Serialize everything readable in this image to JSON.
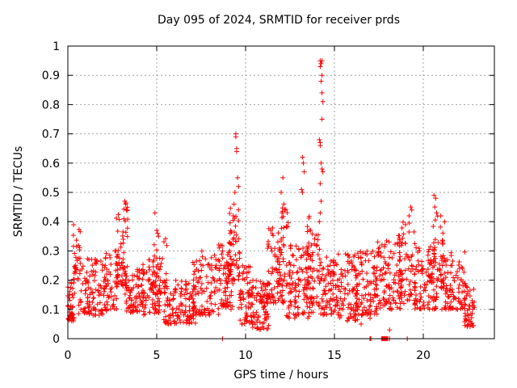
{
  "chart_data": {
    "type": "scatter",
    "title": "Day 095 of 2024, SRMTID for receiver prds",
    "xlabel": "GPS time / hours",
    "ylabel": "SRMTID / TECUs",
    "xlim": [
      0,
      24
    ],
    "ylim": [
      0,
      1
    ],
    "xticks": [
      0,
      5,
      10,
      15,
      20
    ],
    "yticks": [
      0,
      0.1,
      0.2,
      0.3,
      0.4,
      0.5,
      0.6,
      0.7,
      0.8,
      0.9,
      1
    ],
    "x_tick_labels": [
      "0",
      "5",
      "10",
      "15",
      "20"
    ],
    "y_tick_labels": [
      "0",
      "0.1",
      "0.2",
      "0.3",
      "0.4",
      "0.5",
      "0.6",
      "0.7",
      "0.8",
      "0.9",
      "1"
    ],
    "grid": true,
    "marker": "plus",
    "series": [
      {
        "name": "SRMTID",
        "color": "#ff0000",
        "clusters": [
          {
            "x0": 0.0,
            "x1": 0.4,
            "y_lo": 0.06,
            "y_hi": 0.2,
            "n": 40
          },
          {
            "x0": 0.3,
            "x1": 0.7,
            "y_lo": 0.2,
            "y_hi": 0.39,
            "n": 30
          },
          {
            "x0": 0.6,
            "x1": 2.2,
            "y_lo": 0.08,
            "y_hi": 0.28,
            "n": 110
          },
          {
            "x0": 2.0,
            "x1": 2.8,
            "y_lo": 0.1,
            "y_hi": 0.3,
            "n": 50
          },
          {
            "x0": 2.7,
            "x1": 3.4,
            "y_lo": 0.18,
            "y_hi": 0.47,
            "n": 60
          },
          {
            "x0": 3.2,
            "x1": 4.3,
            "y_lo": 0.09,
            "y_hi": 0.24,
            "n": 80
          },
          {
            "x0": 4.2,
            "x1": 5.2,
            "y_lo": 0.08,
            "y_hi": 0.27,
            "n": 70
          },
          {
            "x0": 4.8,
            "x1": 5.6,
            "y_lo": 0.15,
            "y_hi": 0.36,
            "n": 35
          },
          {
            "x0": 5.4,
            "x1": 7.2,
            "y_lo": 0.05,
            "y_hi": 0.2,
            "n": 120
          },
          {
            "x0": 7.0,
            "x1": 8.6,
            "y_lo": 0.08,
            "y_hi": 0.3,
            "n": 100
          },
          {
            "x0": 8.4,
            "x1": 9.3,
            "y_lo": 0.1,
            "y_hi": 0.33,
            "n": 70
          },
          {
            "x0": 9.0,
            "x1": 9.7,
            "y_lo": 0.2,
            "y_hi": 0.45,
            "n": 50
          },
          {
            "x0": 9.6,
            "x1": 10.4,
            "y_lo": 0.05,
            "y_hi": 0.25,
            "n": 60
          },
          {
            "x0": 10.3,
            "x1": 11.3,
            "y_lo": 0.03,
            "y_hi": 0.2,
            "n": 80
          },
          {
            "x0": 11.2,
            "x1": 12.3,
            "y_lo": 0.12,
            "y_hi": 0.38,
            "n": 90
          },
          {
            "x0": 11.9,
            "x1": 12.4,
            "y_lo": 0.3,
            "y_hi": 0.48,
            "n": 20
          },
          {
            "x0": 12.3,
            "x1": 13.8,
            "y_lo": 0.07,
            "y_hi": 0.32,
            "n": 110
          },
          {
            "x0": 13.4,
            "x1": 14.2,
            "y_lo": 0.12,
            "y_hi": 0.42,
            "n": 60
          },
          {
            "x0": 14.1,
            "x1": 15.3,
            "y_lo": 0.08,
            "y_hi": 0.28,
            "n": 90
          },
          {
            "x0": 15.2,
            "x1": 16.3,
            "y_lo": 0.06,
            "y_hi": 0.3,
            "n": 80
          },
          {
            "x0": 16.2,
            "x1": 17.4,
            "y_lo": 0.08,
            "y_hi": 0.3,
            "n": 90
          },
          {
            "x0": 17.3,
            "x1": 18.8,
            "y_lo": 0.1,
            "y_hi": 0.34,
            "n": 110
          },
          {
            "x0": 18.6,
            "x1": 19.6,
            "y_lo": 0.12,
            "y_hi": 0.4,
            "n": 70
          },
          {
            "x0": 19.5,
            "x1": 20.8,
            "y_lo": 0.1,
            "y_hi": 0.32,
            "n": 100
          },
          {
            "x0": 20.4,
            "x1": 21.2,
            "y_lo": 0.18,
            "y_hi": 0.42,
            "n": 45
          },
          {
            "x0": 21.0,
            "x1": 22.4,
            "y_lo": 0.1,
            "y_hi": 0.3,
            "n": 100
          },
          {
            "x0": 22.3,
            "x1": 22.9,
            "y_lo": 0.04,
            "y_hi": 0.18,
            "n": 45
          }
        ],
        "points": [
          [
            9.45,
            0.7
          ],
          [
            9.45,
            0.69
          ],
          [
            9.5,
            0.65
          ],
          [
            9.5,
            0.64
          ],
          [
            9.55,
            0.55
          ],
          [
            9.6,
            0.52
          ],
          [
            9.4,
            0.5
          ],
          [
            9.35,
            0.46
          ],
          [
            9.3,
            0.42
          ],
          [
            12.1,
            0.55
          ],
          [
            12.0,
            0.5
          ],
          [
            12.15,
            0.46
          ],
          [
            12.05,
            0.43
          ],
          [
            13.2,
            0.62
          ],
          [
            13.25,
            0.6
          ],
          [
            13.3,
            0.57
          ],
          [
            13.15,
            0.51
          ],
          [
            13.2,
            0.5
          ],
          [
            14.2,
            0.95
          ],
          [
            14.25,
            0.94
          ],
          [
            14.3,
            0.95
          ],
          [
            14.2,
            0.93
          ],
          [
            14.3,
            0.9
          ],
          [
            14.25,
            0.88
          ],
          [
            14.3,
            0.84
          ],
          [
            14.35,
            0.81
          ],
          [
            14.3,
            0.75
          ],
          [
            14.15,
            0.68
          ],
          [
            14.2,
            0.67
          ],
          [
            14.2,
            0.66
          ],
          [
            14.25,
            0.6
          ],
          [
            14.3,
            0.58
          ],
          [
            14.35,
            0.57
          ],
          [
            14.2,
            0.53
          ],
          [
            14.25,
            0.47
          ],
          [
            14.2,
            0.43
          ],
          [
            14.15,
            0.4
          ],
          [
            3.2,
            0.47
          ],
          [
            3.25,
            0.46
          ],
          [
            3.3,
            0.44
          ],
          [
            3.15,
            0.41
          ],
          [
            4.9,
            0.43
          ],
          [
            5.0,
            0.37
          ],
          [
            5.05,
            0.36
          ],
          [
            5.1,
            0.35
          ],
          [
            17.65,
            0.0
          ],
          [
            17.7,
            0.0
          ],
          [
            17.72,
            0.0
          ],
          [
            17.75,
            0.0
          ],
          [
            17.8,
            0.0
          ],
          [
            17.8,
            0.0
          ],
          [
            17.82,
            0.0
          ],
          [
            17.85,
            0.0
          ],
          [
            17.9,
            0.0
          ],
          [
            17.92,
            0.0
          ],
          [
            17.95,
            0.0
          ],
          [
            18.0,
            0.0
          ],
          [
            18.1,
            0.0
          ],
          [
            17.0,
            0.0
          ],
          [
            17.05,
            0.0
          ],
          [
            8.7,
            0.0
          ],
          [
            19.1,
            0.0
          ],
          [
            16.2,
            0.08
          ],
          [
            16.5,
            0.05
          ],
          [
            18.1,
            0.03
          ],
          [
            17.0,
            0.07
          ],
          [
            19.3,
            0.45
          ],
          [
            19.35,
            0.44
          ],
          [
            19.2,
            0.42
          ],
          [
            19.0,
            0.39
          ],
          [
            20.6,
            0.49
          ],
          [
            20.7,
            0.48
          ],
          [
            20.65,
            0.45
          ],
          [
            20.75,
            0.43
          ]
        ]
      }
    ]
  }
}
